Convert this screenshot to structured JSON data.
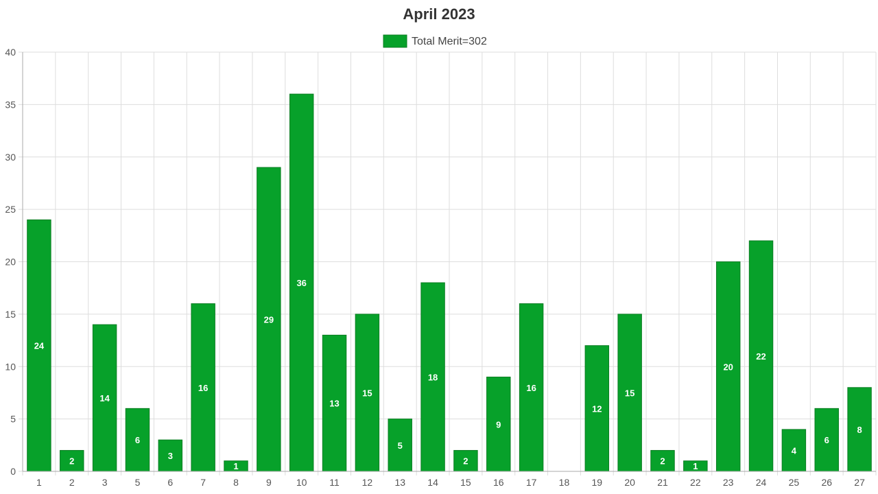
{
  "chart_data": {
    "type": "bar",
    "title": "April 2023",
    "xlabel": "",
    "ylabel": "",
    "ylim": [
      0,
      40
    ],
    "yticks": [
      0,
      5,
      10,
      15,
      20,
      25,
      30,
      35,
      40
    ],
    "grid": true,
    "legend_position": "top-center",
    "categories": [
      "1",
      "2",
      "3",
      "5",
      "6",
      "7",
      "8",
      "9",
      "10",
      "11",
      "12",
      "13",
      "14",
      "15",
      "16",
      "17",
      "18",
      "19",
      "20",
      "21",
      "22",
      "23",
      "24",
      "25",
      "26",
      "27"
    ],
    "series": [
      {
        "name": "Total Merit=302",
        "color": "#07a12a",
        "border_color": "#0b7d22",
        "values": [
          24,
          2,
          14,
          6,
          3,
          16,
          1,
          29,
          36,
          13,
          15,
          5,
          18,
          2,
          9,
          16,
          0,
          12,
          15,
          2,
          1,
          20,
          22,
          4,
          6,
          8
        ]
      }
    ]
  }
}
